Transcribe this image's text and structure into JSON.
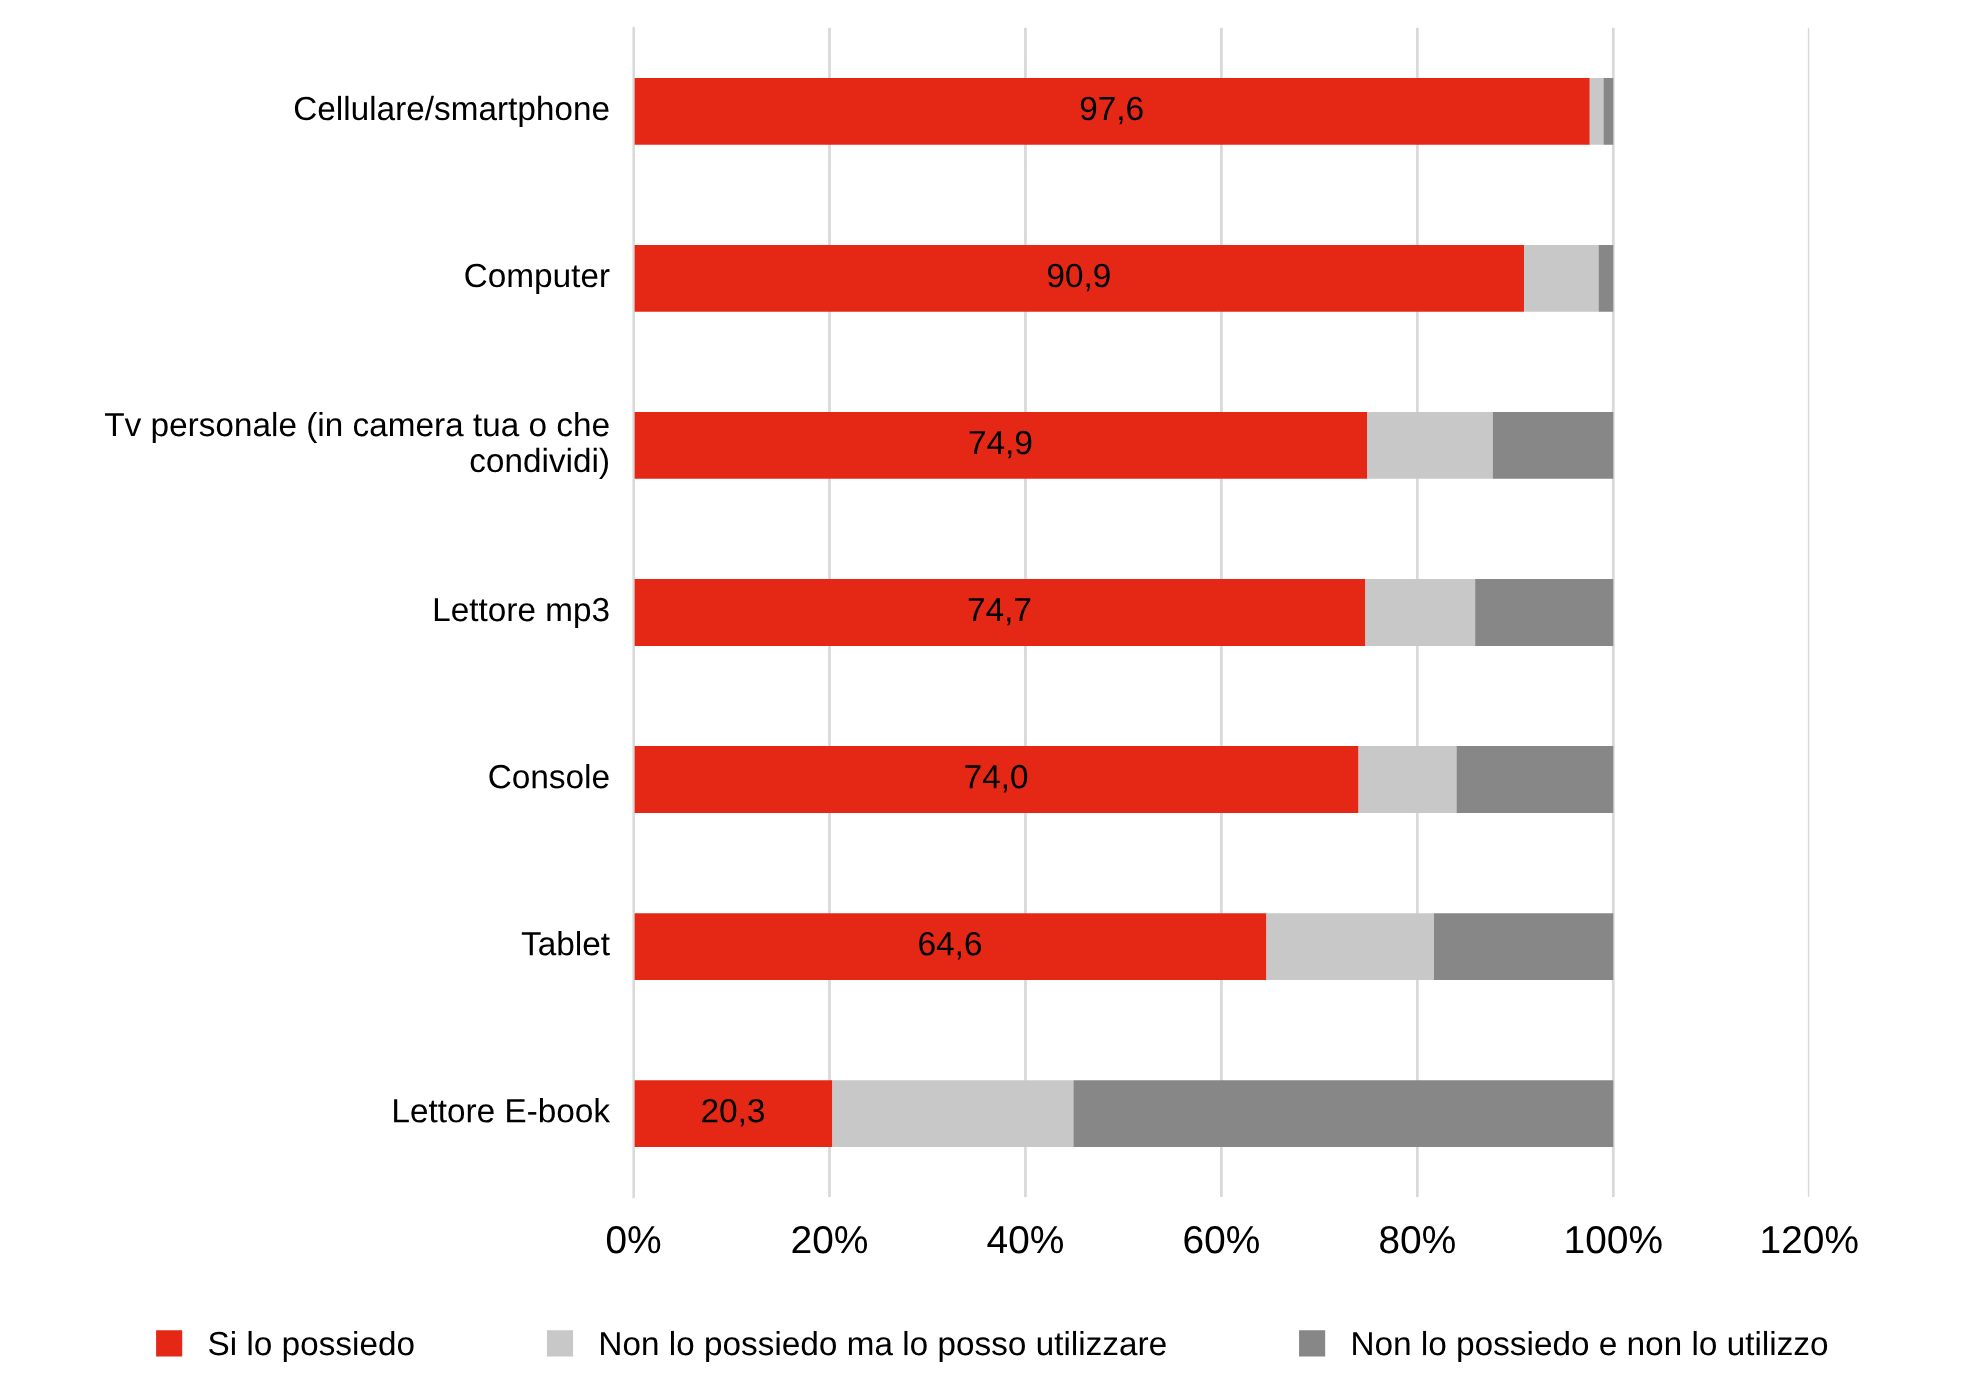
{
  "chart_data": {
    "type": "bar",
    "orientation": "horizontal",
    "stacked": true,
    "categories": [
      "Cellulare/smartphone",
      "Computer",
      "Tv personale (in camera tua o che condividi)",
      "Lettore mp3",
      "Console",
      "Tablet",
      "Lettore E-book"
    ],
    "series": [
      {
        "name": "Si lo possiedo",
        "color": "#e52816",
        "values": [
          97.6,
          90.9,
          74.9,
          74.7,
          74.0,
          64.6,
          20.3
        ],
        "value_labels": [
          "97,6",
          "90,9",
          "74,9",
          "74,7",
          "74,0",
          "64,6",
          "20,3"
        ]
      },
      {
        "name": "Non lo possiedo ma lo posso utilizzare",
        "color": "#c8c8c8",
        "values": [
          1.4,
          7.6,
          12.8,
          11.2,
          10.0,
          17.1,
          24.6
        ]
      },
      {
        "name": "Non lo possiedo e non lo utilizzo",
        "color": "#878787",
        "values": [
          1.0,
          1.5,
          12.3,
          14.1,
          16.0,
          18.3,
          55.1
        ]
      }
    ],
    "xlim": [
      0,
      120
    ],
    "xticks": [
      {
        "value": 0,
        "label": "0%"
      },
      {
        "value": 20,
        "label": "20%"
      },
      {
        "value": 40,
        "label": "40%"
      },
      {
        "value": 60,
        "label": "60%"
      },
      {
        "value": 80,
        "label": "80%"
      },
      {
        "value": 100,
        "label": "100%"
      },
      {
        "value": 120,
        "label": "120%"
      }
    ],
    "grid": "x",
    "legend": "bottom"
  }
}
